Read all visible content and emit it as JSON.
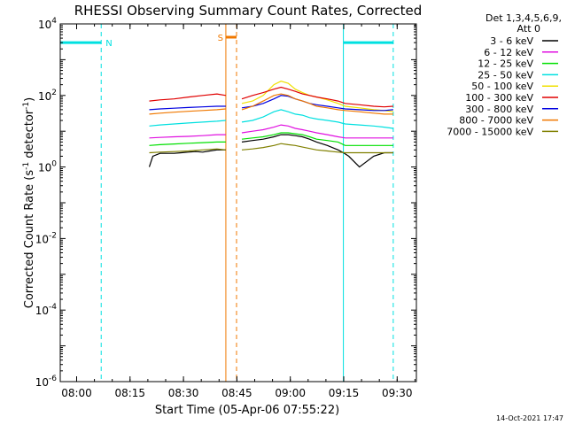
{
  "chart_data": {
    "type": "line",
    "title": "RHESSI Observing Summary Count Rates, Corrected",
    "xlabel": "Start Time (05-Apr-06 07:55:22)",
    "ylabel_main": "Corrected Count Rate (s",
    "ylabel_sup1": "-1",
    "ylabel_mid": " detector",
    "ylabel_sup2": "-1",
    "ylabel_end": ")",
    "x_range_minutes": [
      0,
      100
    ],
    "x_ticks": [
      {
        "label": "08:00",
        "minutes": 4.6
      },
      {
        "label": "08:15",
        "minutes": 19.6
      },
      {
        "label": "08:30",
        "minutes": 34.6
      },
      {
        "label": "08:45",
        "minutes": 49.6
      },
      {
        "label": "09:00",
        "minutes": 64.6
      },
      {
        "label": "09:15",
        "minutes": 79.6
      },
      {
        "label": "09:30",
        "minutes": 94.6
      }
    ],
    "y_scale": "log",
    "ylim": [
      1e-06,
      10000.0
    ],
    "y_ticks": [
      {
        "base": "10",
        "exp": "-6",
        "value": 1e-06
      },
      {
        "base": "10",
        "exp": "-4",
        "value": 0.0001
      },
      {
        "base": "10",
        "exp": "-2",
        "value": 0.01
      },
      {
        "base": "10",
        "exp": "0",
        "value": 1
      },
      {
        "base": "10",
        "exp": "2",
        "value": 100
      },
      {
        "base": "10",
        "exp": "4",
        "value": 10000
      }
    ],
    "legend": {
      "placement": "right",
      "header_line1": "Det 1,3,4,5,6,9,",
      "header_line2": "Att 0"
    },
    "series": [
      {
        "name": "3 - 6 keV",
        "color": "#000000",
        "x": [
          25,
          26,
          28,
          30,
          32,
          34,
          36,
          38,
          40,
          42,
          44,
          46.5
        ],
        "y": [
          1.0,
          2.0,
          2.4,
          2.4,
          2.4,
          2.5,
          2.6,
          2.7,
          2.6,
          2.8,
          3.0,
          3.0
        ]
      },
      {
        "name": "3 - 6 keV",
        "color": "#000000",
        "x": [
          51,
          54,
          57,
          60,
          62,
          64,
          66,
          68,
          70,
          72,
          75,
          78,
          79.5,
          81,
          84,
          88,
          91,
          93.5
        ],
        "y": [
          5,
          5.5,
          6,
          7,
          8,
          8,
          7.5,
          7,
          6,
          5,
          4,
          3,
          2.5,
          2.0,
          1.0,
          2.0,
          2.5,
          2.5
        ]
      },
      {
        "name": "6 - 12 keV",
        "color": "#e010e0",
        "x": [
          25,
          28,
          32,
          36,
          40,
          44,
          46.5
        ],
        "y": [
          6.5,
          6.7,
          7,
          7.2,
          7.5,
          8,
          8
        ]
      },
      {
        "name": "6 - 12 keV",
        "color": "#e010e0",
        "x": [
          51,
          54,
          57,
          60,
          62,
          64,
          66,
          68,
          70,
          72,
          75,
          78,
          80,
          84,
          88,
          91,
          93.5
        ],
        "y": [
          9,
          10,
          11,
          13,
          15,
          14,
          12,
          11,
          10,
          9,
          8,
          7,
          6.5,
          6.5,
          6.5,
          6.5,
          6.5
        ]
      },
      {
        "name": "12 - 25 keV",
        "color": "#00e000",
        "x": [
          25,
          28,
          32,
          36,
          40,
          44,
          46.5
        ],
        "y": [
          4,
          4.2,
          4.4,
          4.6,
          4.8,
          5,
          5
        ]
      },
      {
        "name": "12 - 25 keV",
        "color": "#00e000",
        "x": [
          51,
          54,
          57,
          60,
          62,
          64,
          66,
          68,
          70,
          72,
          75,
          78,
          80,
          84,
          88,
          91,
          93.5
        ],
        "y": [
          6,
          6.5,
          7,
          8,
          9,
          9,
          8.5,
          8,
          7,
          6,
          5.5,
          5,
          4,
          4,
          4,
          4,
          4
        ]
      },
      {
        "name": "25 - 50 keV",
        "color": "#00e0e0",
        "x": [
          25,
          28,
          32,
          36,
          40,
          44,
          46.5
        ],
        "y": [
          14,
          15,
          16,
          17,
          18,
          19,
          20
        ]
      },
      {
        "name": "25 - 50 keV",
        "color": "#00e0e0",
        "x": [
          51,
          54,
          57,
          60,
          62,
          64,
          66,
          68,
          70,
          72,
          75,
          78,
          80,
          84,
          88,
          91,
          93.5
        ],
        "y": [
          18,
          20,
          25,
          35,
          40,
          35,
          30,
          28,
          24,
          22,
          20,
          18,
          16,
          15,
          14,
          13,
          12
        ]
      },
      {
        "name": "50 - 100 keV",
        "color": "#f0e000",
        "x": [
          51,
          54,
          57,
          60,
          62,
          64,
          66,
          68,
          70,
          72,
          75,
          78,
          80,
          84,
          88,
          91,
          93.5
        ],
        "y": [
          60,
          70,
          100,
          200,
          250,
          220,
          150,
          120,
          100,
          90,
          75,
          60,
          50,
          45,
          40,
          38,
          35
        ]
      },
      {
        "name": "100 - 300 keV",
        "color": "#e00000",
        "x": [
          25,
          28,
          32,
          36,
          40,
          44,
          46.5
        ],
        "y": [
          70,
          75,
          80,
          90,
          100,
          110,
          100
        ]
      },
      {
        "name": "100 - 300 keV",
        "color": "#e00000",
        "x": [
          51,
          54,
          57,
          60,
          62,
          64,
          66,
          68,
          70,
          72,
          75,
          78,
          80,
          84,
          88,
          91,
          93.5
        ],
        "y": [
          80,
          100,
          120,
          150,
          170,
          150,
          130,
          110,
          100,
          90,
          80,
          70,
          60,
          55,
          50,
          48,
          50
        ]
      },
      {
        "name": "300 - 800 keV",
        "color": "#0000e0",
        "x": [
          25,
          28,
          32,
          36,
          40,
          44,
          46.5
        ],
        "y": [
          40,
          42,
          44,
          46,
          48,
          50,
          50
        ]
      },
      {
        "name": "300 - 800 keV",
        "color": "#0000e0",
        "x": [
          51,
          54,
          57,
          60,
          62,
          64,
          66,
          68,
          70,
          72,
          75,
          78,
          80,
          84,
          88,
          91,
          93.5
        ],
        "y": [
          45,
          50,
          60,
          80,
          100,
          95,
          80,
          70,
          60,
          55,
          50,
          45,
          42,
          40,
          38,
          38,
          40
        ]
      },
      {
        "name": "800 - 7000 keV",
        "color": "#f07800",
        "x": [
          25,
          28,
          32,
          36,
          40,
          44,
          46.5
        ],
        "y": [
          30,
          32,
          34,
          36,
          38,
          40,
          42
        ]
      },
      {
        "name": "800 - 7000 keV",
        "color": "#f07800",
        "x": [
          51,
          54,
          57,
          60,
          62,
          64,
          66,
          68,
          70,
          72,
          75,
          78,
          80,
          84,
          88,
          91,
          93.5
        ],
        "y": [
          40,
          50,
          70,
          100,
          110,
          100,
          80,
          70,
          60,
          50,
          45,
          40,
          38,
          35,
          32,
          30,
          30
        ]
      },
      {
        "name": "7000 - 15000 keV",
        "color": "#808000",
        "x": [
          25,
          28,
          32,
          36,
          40,
          44,
          46.5
        ],
        "y": [
          2.5,
          2.6,
          2.7,
          2.8,
          3.0,
          3.2,
          3.0
        ]
      },
      {
        "name": "7000 - 15000 keV",
        "color": "#808000",
        "x": [
          51,
          54,
          57,
          60,
          62,
          64,
          66,
          68,
          70,
          72,
          75,
          78,
          80,
          84,
          88,
          91,
          93.5
        ],
        "y": [
          3,
          3.2,
          3.5,
          4,
          4.5,
          4.2,
          4,
          3.6,
          3.3,
          3.0,
          2.8,
          2.6,
          2.5,
          2.5,
          2.5,
          2.5,
          2.5
        ]
      }
    ],
    "legend_entries": [
      {
        "label": "3 - 6 keV",
        "color": "#000000"
      },
      {
        "label": "6 - 12 keV",
        "color": "#e010e0"
      },
      {
        "label": "12 - 25 keV",
        "color": "#00e000"
      },
      {
        "label": "25 - 50 keV",
        "color": "#00e0e0"
      },
      {
        "label": "50 - 100 keV",
        "color": "#f0e000"
      },
      {
        "label": "100 - 300 keV",
        "color": "#e00000"
      },
      {
        "label": "300 - 800 keV",
        "color": "#0000e0"
      },
      {
        "label": "800 - 7000 keV",
        "color": "#f07800"
      },
      {
        "label": "7000 - 15000 keV",
        "color": "#808000"
      }
    ],
    "night_intervals": [
      {
        "start": 0,
        "end": 11.5,
        "label": "N"
      },
      {
        "start": 79.5,
        "end": 93.5,
        "label": ""
      }
    ],
    "saa_interval": {
      "start": 46.5,
      "end": 49.5,
      "label": "S"
    },
    "vlines_cyan_dashed": [
      11.5,
      93.5
    ],
    "vlines_cyan_solid": [
      79.5
    ],
    "vlines_orange_solid": [
      46.5
    ],
    "vlines_orange_dashed": [
      49.5
    ],
    "night_color": "#00e0e0",
    "saa_color": "#f07800",
    "timestamp": "14-Oct-2021 17:47"
  }
}
